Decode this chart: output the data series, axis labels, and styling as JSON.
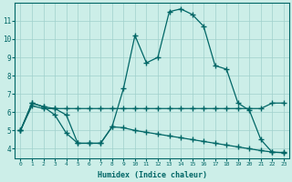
{
  "xlabel": "Humidex (Indice chaleur)",
  "bg_color": "#cceee8",
  "grid_color": "#a0d0cc",
  "line_color": "#006666",
  "xlim": [
    -0.5,
    23.5
  ],
  "ylim": [
    3.5,
    12.0
  ],
  "yticks": [
    4,
    5,
    6,
    7,
    8,
    9,
    10,
    11
  ],
  "xticks": [
    0,
    1,
    2,
    3,
    4,
    5,
    6,
    7,
    8,
    9,
    10,
    11,
    12,
    13,
    14,
    15,
    16,
    17,
    18,
    19,
    20,
    21,
    22,
    23
  ],
  "series1_x": [
    0,
    1,
    2,
    3,
    4,
    5,
    6,
    7,
    8,
    9,
    10,
    11,
    12,
    13,
    14,
    15,
    16,
    17,
    18,
    19,
    20,
    21,
    22,
    23
  ],
  "series1_y": [
    5.0,
    6.5,
    6.3,
    6.2,
    5.85,
    4.3,
    4.3,
    4.3,
    5.2,
    7.3,
    10.2,
    8.7,
    9.0,
    11.5,
    11.65,
    11.35,
    10.7,
    8.55,
    8.35,
    6.5,
    6.1,
    4.5,
    3.8,
    3.8
  ],
  "series2_x": [
    0,
    1,
    2,
    3,
    4,
    5,
    6,
    7,
    8,
    9,
    10,
    11,
    12,
    13,
    14,
    15,
    16,
    17,
    18,
    19,
    20,
    21,
    22,
    23
  ],
  "series2_y": [
    5.0,
    6.35,
    6.2,
    6.2,
    6.2,
    6.2,
    6.2,
    6.2,
    6.2,
    6.2,
    6.2,
    6.2,
    6.2,
    6.2,
    6.2,
    6.2,
    6.2,
    6.2,
    6.2,
    6.2,
    6.2,
    6.2,
    6.5,
    6.5
  ],
  "series3_x": [
    0,
    1,
    2,
    3,
    4,
    5,
    6,
    7,
    8,
    9,
    10,
    11,
    12,
    13,
    14,
    15,
    16,
    17,
    18,
    19,
    20,
    21,
    22,
    23
  ],
  "series3_y": [
    5.0,
    6.5,
    6.3,
    5.85,
    4.85,
    4.3,
    4.3,
    4.3,
    5.2,
    5.15,
    5.0,
    4.9,
    4.8,
    4.7,
    4.6,
    4.5,
    4.4,
    4.3,
    4.2,
    4.1,
    4.0,
    3.9,
    3.82,
    3.78
  ]
}
